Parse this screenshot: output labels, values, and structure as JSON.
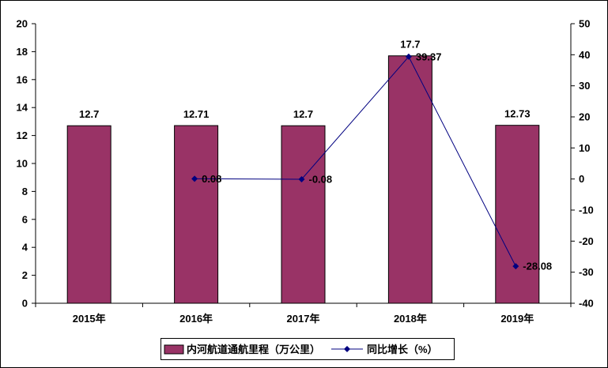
{
  "chart_data": {
    "type": "bar",
    "categories": [
      "2015年",
      "2016年",
      "2017年",
      "2018年",
      "2019年"
    ],
    "series": [
      {
        "name": "内河航道通航里程（万公里）",
        "kind": "bar",
        "axis": "left",
        "values": [
          12.7,
          12.71,
          12.7,
          17.7,
          12.73
        ],
        "labels": [
          "12.7",
          "12.71",
          "12.7",
          "17.7",
          "12.73"
        ],
        "color": "#993366"
      },
      {
        "name": "同比增长（%）",
        "kind": "line",
        "axis": "right",
        "values": [
          null,
          0.08,
          -0.08,
          39.37,
          -28.08
        ],
        "labels": [
          "",
          "0.08",
          "-0.08",
          "39.37",
          "-28.08"
        ],
        "color": "#000080"
      }
    ],
    "y_left": {
      "min": 0,
      "max": 20,
      "ticks": [
        "0",
        "2",
        "4",
        "6",
        "8",
        "10",
        "12",
        "14",
        "16",
        "18",
        "20"
      ]
    },
    "y_right": {
      "min": -40,
      "max": 50,
      "ticks": [
        "-40",
        "-30",
        "-20",
        "-10",
        "0",
        "10",
        "20",
        "30",
        "40",
        "50"
      ]
    },
    "grid": false,
    "legend_position": "bottom"
  }
}
